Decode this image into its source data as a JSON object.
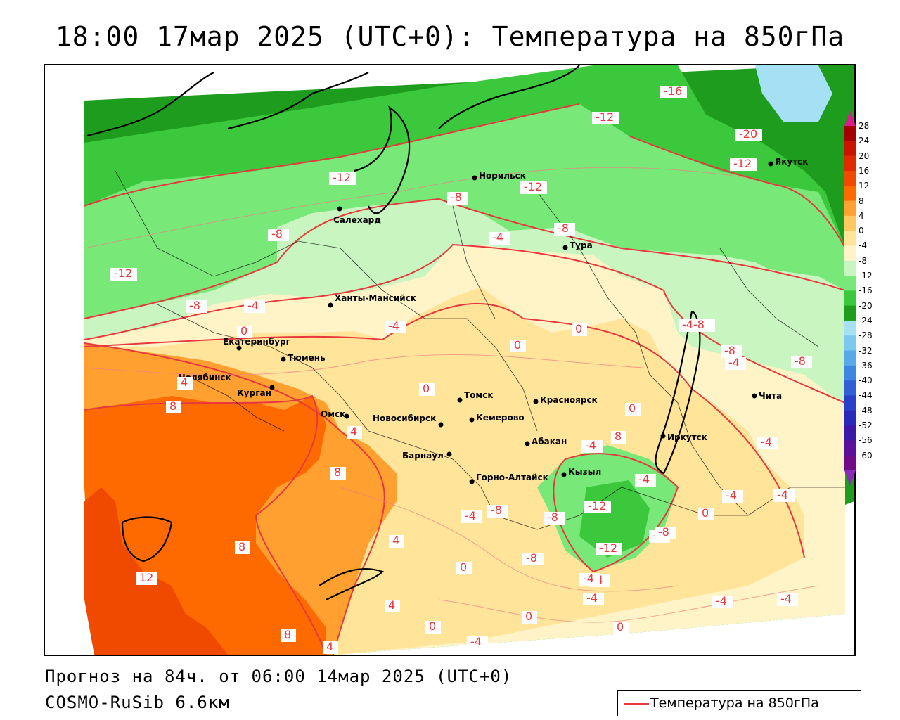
{
  "title": "18:00 17мар 2025 (UTC+0): Температура на 850гПа",
  "forecast_line": "Прогноз на 84ч. от 06:00 14мар 2025 (UTC+0)",
  "model_line": "COSMO-RuSib 6.6км",
  "legend_label": "Температура на 850гПа",
  "contour_color": "#e8383d",
  "colorbar": {
    "ticks": [
      "28",
      "24",
      "20",
      "16",
      "12",
      "8",
      "4",
      "0",
      "-4",
      "-8",
      "-12",
      "-16",
      "-20",
      "-24",
      "-28",
      "-32",
      "-36",
      "-40",
      "-44",
      "-48",
      "-52",
      "-56",
      "-60"
    ],
    "colors": [
      "#a50000",
      "#c81400",
      "#e02a00",
      "#f04a00",
      "#ff6a00",
      "#ffa030",
      "#ffc860",
      "#ffe49a",
      "#fff4c8",
      "#c8f5c0",
      "#78e878",
      "#3cc83c",
      "#1e9c1e",
      "#a6e0f5",
      "#7cc8f0",
      "#58a8ea",
      "#3e86e2",
      "#3060d8",
      "#2a40c8",
      "#2a28b8",
      "#3c18a8",
      "#5a1098",
      "#700c88"
    ]
  },
  "cities": [
    {
      "name": "Норильск"
    },
    {
      "name": "Якутск"
    },
    {
      "name": "Салехард"
    },
    {
      "name": "Тура"
    },
    {
      "name": "Ханты-Мансийск"
    },
    {
      "name": "Екатеринбург"
    },
    {
      "name": "Тюмень"
    },
    {
      "name": "Челябинск"
    },
    {
      "name": "Курган"
    },
    {
      "name": "Омск"
    },
    {
      "name": "Томск"
    },
    {
      "name": "Красноярск"
    },
    {
      "name": "Новосибирск"
    },
    {
      "name": "Кемерово"
    },
    {
      "name": "Абакан"
    },
    {
      "name": "Барнаул"
    },
    {
      "name": "Иркутск"
    },
    {
      "name": "Чита"
    },
    {
      "name": "Кызыл"
    },
    {
      "name": "Горно-Алтайск"
    }
  ],
  "contour_labels": [
    {
      "text": "-16"
    },
    {
      "text": "-12"
    },
    {
      "text": "-20"
    },
    {
      "text": "-12"
    },
    {
      "text": "-12"
    },
    {
      "text": "-12"
    },
    {
      "text": "-8"
    },
    {
      "text": "-8"
    },
    {
      "text": "-4"
    },
    {
      "text": "-8"
    },
    {
      "text": "-12"
    },
    {
      "text": "-8"
    },
    {
      "text": "-4"
    },
    {
      "text": "-4"
    },
    {
      "text": "0"
    },
    {
      "text": "0"
    },
    {
      "text": "0"
    },
    {
      "text": "-4-8"
    },
    {
      "text": "-8"
    },
    {
      "text": "-4"
    },
    {
      "text": "-8"
    },
    {
      "text": "4"
    },
    {
      "text": "8"
    },
    {
      "text": "0"
    },
    {
      "text": "4"
    },
    {
      "text": "8"
    },
    {
      "text": "0"
    },
    {
      "text": "8"
    },
    {
      "text": "-4"
    },
    {
      "text": "-4"
    },
    {
      "text": "-8"
    },
    {
      "text": "-4"
    },
    {
      "text": "-8"
    },
    {
      "text": "-12"
    },
    {
      "text": "-8"
    },
    {
      "text": "-4"
    },
    {
      "text": "0"
    },
    {
      "text": "-4"
    },
    {
      "text": "-4"
    },
    {
      "text": "8"
    },
    {
      "text": "4"
    },
    {
      "text": "-8"
    },
    {
      "text": "-12"
    },
    {
      "text": "-8"
    },
    {
      "text": "-4"
    },
    {
      "text": "12"
    },
    {
      "text": "0"
    },
    {
      "text": "-4"
    },
    {
      "text": "-4"
    },
    {
      "text": "-4"
    },
    {
      "text": "-4"
    },
    {
      "text": "4"
    },
    {
      "text": "0"
    },
    {
      "text": "0"
    },
    {
      "text": "8"
    },
    {
      "text": "4"
    },
    {
      "text": "-4"
    },
    {
      "text": "0"
    }
  ]
}
